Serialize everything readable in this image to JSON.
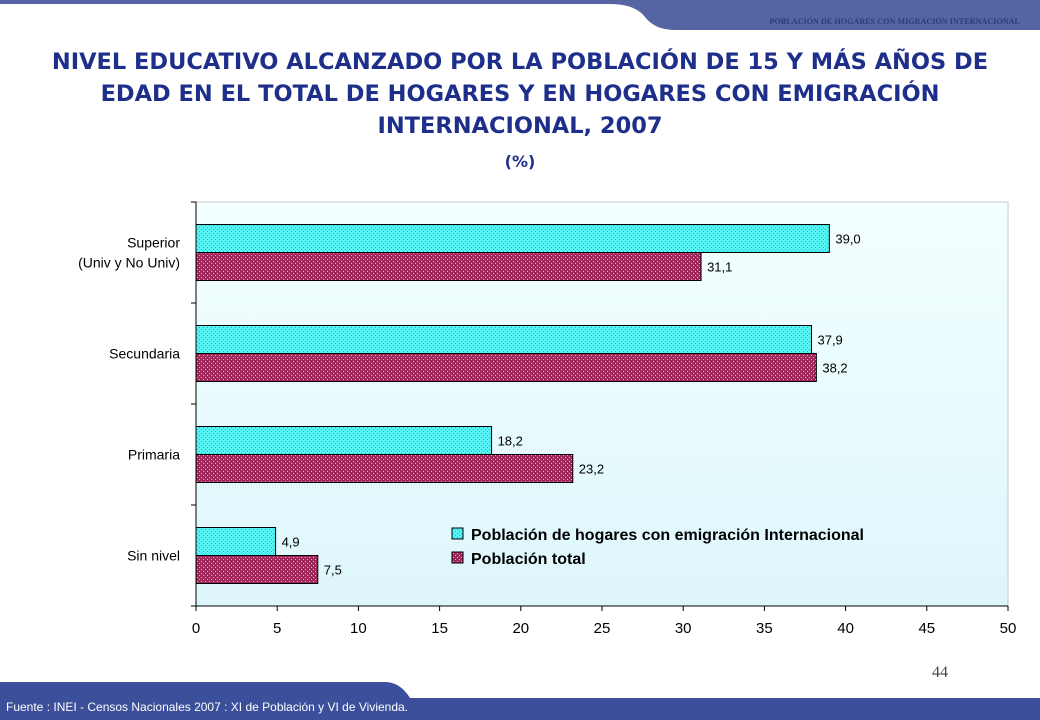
{
  "header": {
    "running_title": "POBLACIÓN DE HOGARES CON MIGRACIÓN INTERNACIONAL"
  },
  "colors": {
    "band": "#5565a3",
    "title": "#1d2f8a",
    "plot_bg_top": "#f4ffff",
    "plot_bg_bottom": "#ddf6fb",
    "emigration": "#55f3f3",
    "total": "#a0285a"
  },
  "chart_data": {
    "type": "bar",
    "orientation": "horizontal",
    "title": "NIVEL EDUCATIVO ALCANZADO POR LA POBLACIÓN DE 15 Y MÁS AÑOS DE EDAD EN EL TOTAL DE HOGARES Y EN HOGARES CON EMIGRACIÓN INTERNACIONAL, 2007",
    "subtitle": "(%)",
    "categories": [
      [
        "Superior",
        "(Univ y No Univ)"
      ],
      [
        "Secundaria"
      ],
      [
        "Primaria"
      ],
      [
        "Sin nivel"
      ]
    ],
    "series": [
      {
        "name": "Población de hogares con emigración Internacional",
        "values": [
          39.0,
          37.9,
          18.2,
          4.9
        ],
        "labels": [
          "39,0",
          "37,9",
          "18,2",
          "4,9"
        ],
        "color": "#55f3f3"
      },
      {
        "name": "Población total",
        "values": [
          31.1,
          38.2,
          23.2,
          7.5
        ],
        "labels": [
          "31,1",
          "38,2",
          "23,2",
          "7,5"
        ],
        "color": "#a0285a"
      }
    ],
    "xlim": [
      0,
      50
    ],
    "xticks": [
      0,
      5,
      10,
      15,
      20,
      25,
      30,
      35,
      40,
      45,
      50
    ],
    "xtick_labels": [
      "0",
      "5",
      "10",
      "15",
      "20",
      "25",
      "30",
      "35",
      "40",
      "45",
      "50"
    ],
    "grid": false,
    "legend_position": "bottom-right, inside plot"
  },
  "page_number": "44",
  "footer": {
    "source": "Fuente : INEI - Censos Nacionales 2007 : XI de Población y VI de Vivienda."
  }
}
